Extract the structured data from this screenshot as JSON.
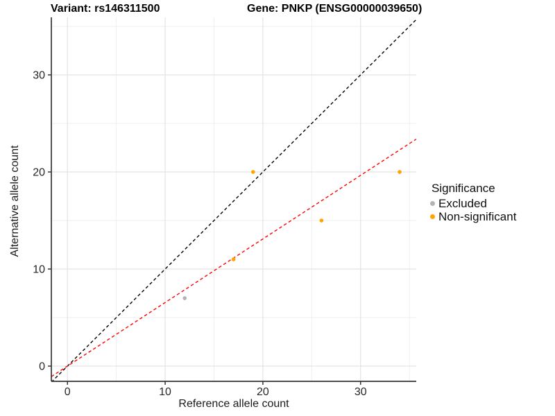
{
  "header": {
    "title_left": "Variant: rs146311500",
    "title_right": "Gene: PNKP (ENSG00000039650)"
  },
  "chart_data": {
    "type": "scatter",
    "title": "Variant: rs146311500 | Gene: PNKP (ENSG00000039650)",
    "xlabel": "Reference allele count",
    "ylabel": "Alternative allele count",
    "xlim": [
      -1.65,
      35.7
    ],
    "ylim": [
      -1.57,
      35.93
    ],
    "x_ticks": [
      0,
      10,
      20,
      30
    ],
    "y_ticks": [
      0,
      10,
      20,
      30
    ],
    "x_minor_ticks": [
      5,
      15,
      25,
      35
    ],
    "y_minor_ticks": [
      5,
      15,
      25,
      35
    ],
    "grid": true,
    "background": "#ffffff",
    "series": [
      {
        "name": "Excluded",
        "color": "#B3B3B3",
        "points": [
          [
            12,
            7
          ]
        ]
      },
      {
        "name": "Non-significant",
        "color": "#FFA500",
        "points": [
          [
            17,
            11
          ],
          [
            19,
            20
          ],
          [
            26,
            15
          ],
          [
            34,
            20
          ]
        ]
      }
    ],
    "lines": [
      {
        "name": "identity-line",
        "slope": 1.0,
        "intercept": 0,
        "color": "#000000",
        "style": "dashed"
      },
      {
        "name": "fit-line",
        "slope": 0.655,
        "intercept": 0,
        "color": "#FF0000",
        "style": "dashed"
      }
    ],
    "legend": {
      "title": "Significance",
      "position": "right",
      "items": [
        {
          "label": "Excluded",
          "color": "#B3B3B3"
        },
        {
          "label": "Non-significant",
          "color": "#FFA500"
        }
      ]
    }
  }
}
